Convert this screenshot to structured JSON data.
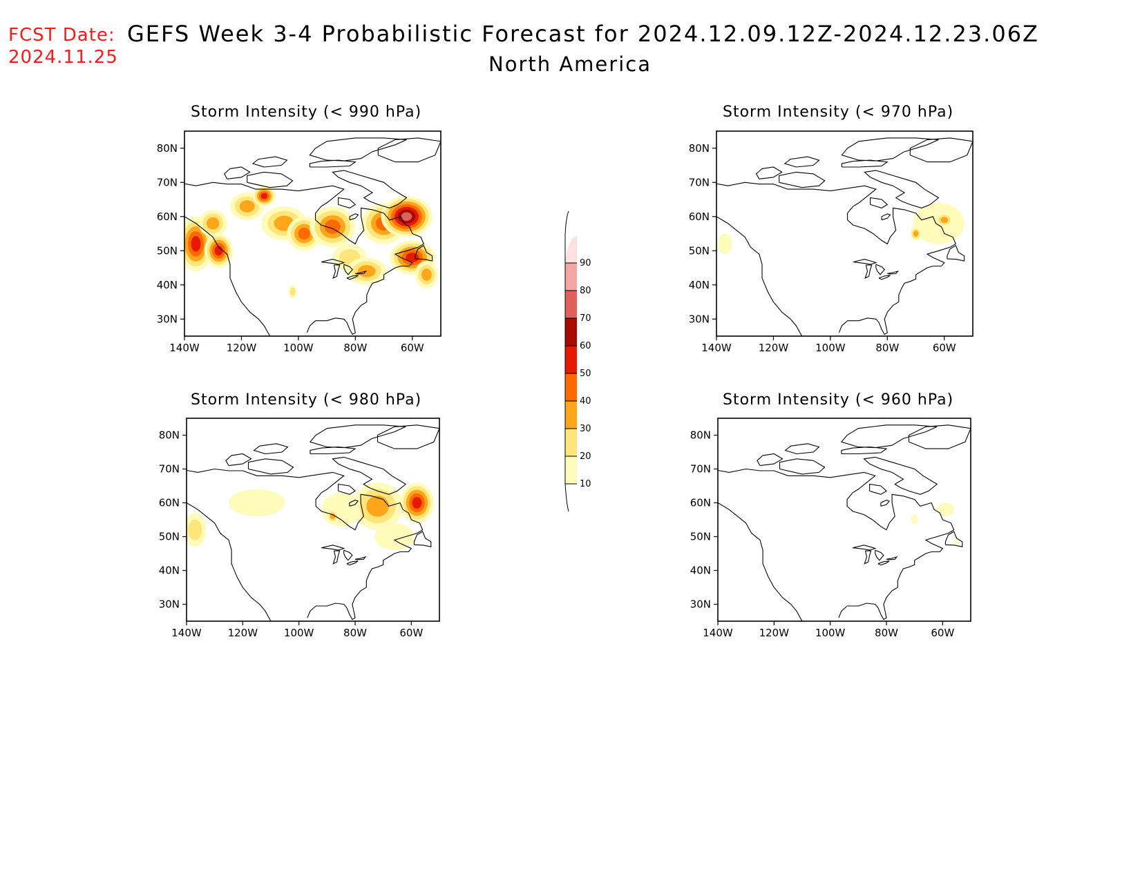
{
  "header": {
    "fcst_label": "FCST Date:",
    "fcst_date": "2024.11.25",
    "title": "GEFS Week 3-4 Probabilistic Forecast for 2024.12.09.12Z-2024.12.23.06Z",
    "region": "North America"
  },
  "axes": {
    "lat_labels": [
      "80N",
      "70N",
      "60N",
      "50N",
      "40N",
      "30N"
    ],
    "lat_values": [
      80,
      70,
      60,
      50,
      40,
      30
    ],
    "lon_labels": [
      "140W",
      "120W",
      "100W",
      "80W",
      "60W"
    ],
    "lon_values": [
      -140,
      -120,
      -100,
      -80,
      -60
    ],
    "lat_range": [
      25,
      85
    ],
    "lon_range": [
      -140,
      -50
    ]
  },
  "colorbar": {
    "levels": [
      "10",
      "20",
      "30",
      "40",
      "50",
      "60",
      "70",
      "80",
      "90"
    ],
    "colors": [
      "#fffcbb",
      "#ffe57a",
      "#ffa61a",
      "#ff6a00",
      "#e61a00",
      "#a80a00",
      "#e0605e",
      "#f2a6a6",
      "#fde2e2"
    ]
  },
  "panels": [
    {
      "id": "p990",
      "title": "Storm Intensity (< 990 hPa)",
      "blobs": [
        {
          "lon": -136,
          "lat": 52,
          "rx": 6,
          "ry": 8,
          "level": 5
        },
        {
          "lon": -128,
          "lat": 50,
          "rx": 5,
          "ry": 5,
          "level": 5
        },
        {
          "lon": -130,
          "lat": 58,
          "rx": 5,
          "ry": 4,
          "level": 3
        },
        {
          "lon": -118,
          "lat": 63,
          "rx": 6,
          "ry": 4,
          "level": 3
        },
        {
          "lon": -112,
          "lat": 66,
          "rx": 4,
          "ry": 3,
          "level": 5
        },
        {
          "lon": -105,
          "lat": 58,
          "rx": 8,
          "ry": 5,
          "level": 3
        },
        {
          "lon": -98,
          "lat": 55,
          "rx": 6,
          "ry": 5,
          "level": 4
        },
        {
          "lon": -88,
          "lat": 57,
          "rx": 8,
          "ry": 6,
          "level": 4
        },
        {
          "lon": -82,
          "lat": 48,
          "rx": 6,
          "ry": 4,
          "level": 2
        },
        {
          "lon": -76,
          "lat": 44,
          "rx": 7,
          "ry": 4,
          "level": 3
        },
        {
          "lon": -70,
          "lat": 58,
          "rx": 8,
          "ry": 6,
          "level": 4
        },
        {
          "lon": -62,
          "lat": 60,
          "rx": 9,
          "ry": 6,
          "level": 7
        },
        {
          "lon": -60,
          "lat": 48,
          "rx": 8,
          "ry": 5,
          "level": 5
        },
        {
          "lon": -55,
          "lat": 43,
          "rx": 4,
          "ry": 4,
          "level": 3
        },
        {
          "lon": -102,
          "lat": 38,
          "rx": 1.5,
          "ry": 2,
          "level": 2
        }
      ]
    },
    {
      "id": "p970",
      "title": "Storm Intensity (< 970 hPa)",
      "blobs": [
        {
          "lon": -137,
          "lat": 52,
          "rx": 2.5,
          "ry": 3,
          "level": 1
        },
        {
          "lon": -62,
          "lat": 58,
          "rx": 9,
          "ry": 6,
          "level": 1
        },
        {
          "lon": -60,
          "lat": 59,
          "rx": 3,
          "ry": 2,
          "level": 3
        },
        {
          "lon": -70,
          "lat": 55,
          "rx": 2,
          "ry": 2,
          "level": 3
        }
      ]
    },
    {
      "id": "p980",
      "title": "Storm Intensity (< 980 hPa)",
      "blobs": [
        {
          "lon": -137,
          "lat": 52,
          "rx": 4,
          "ry": 5,
          "level": 2
        },
        {
          "lon": -115,
          "lat": 60,
          "rx": 10,
          "ry": 4,
          "level": 1
        },
        {
          "lon": -85,
          "lat": 58,
          "rx": 7,
          "ry": 5,
          "level": 1
        },
        {
          "lon": -72,
          "lat": 59,
          "rx": 9,
          "ry": 7,
          "level": 3
        },
        {
          "lon": -58,
          "lat": 60,
          "rx": 6,
          "ry": 6,
          "level": 5
        },
        {
          "lon": -66,
          "lat": 50,
          "rx": 7,
          "ry": 4,
          "level": 1
        },
        {
          "lon": -88,
          "lat": 56,
          "rx": 2,
          "ry": 2,
          "level": 3
        }
      ]
    },
    {
      "id": "p960",
      "title": "Storm Intensity (< 960 hPa)",
      "blobs": [
        {
          "lon": -59,
          "lat": 58,
          "rx": 3,
          "ry": 2,
          "level": 1
        },
        {
          "lon": -70,
          "lat": 55,
          "rx": 1.2,
          "ry": 1.5,
          "level": 1
        },
        {
          "lon": -55,
          "lat": 48,
          "rx": 1,
          "ry": 1,
          "level": 1
        }
      ]
    }
  ]
}
